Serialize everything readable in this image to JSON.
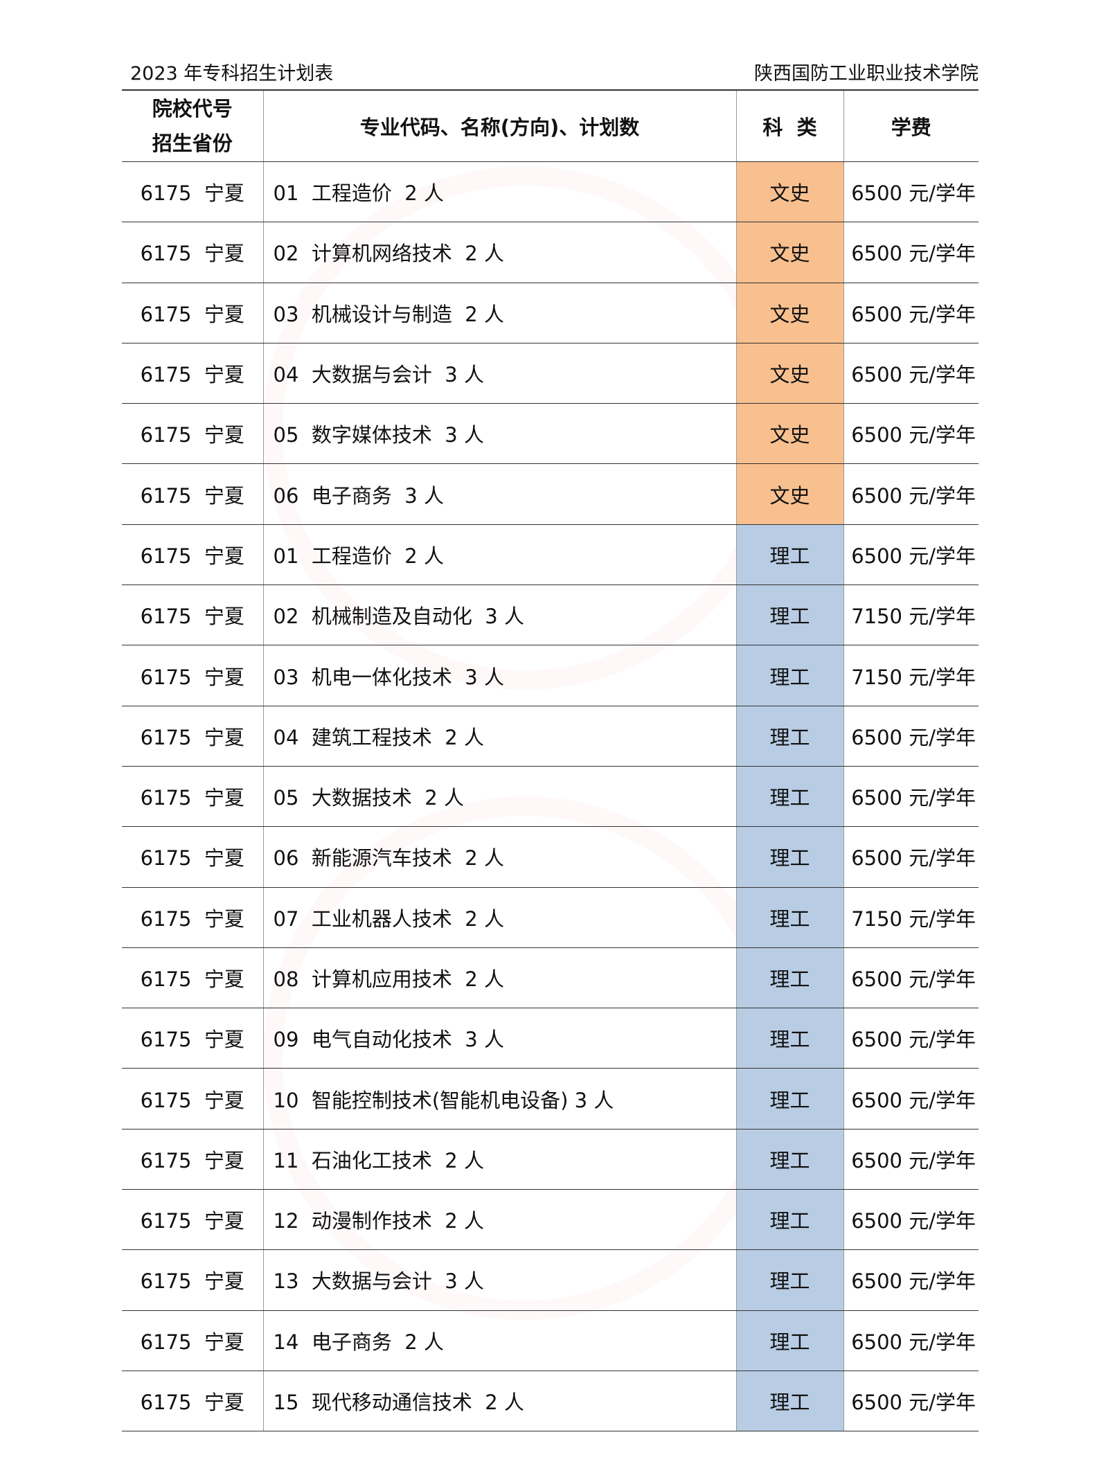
{
  "header": {
    "left": "2023 年专科招生计划表",
    "right": "陕西国防工业职业技术学院"
  },
  "columns": {
    "school_code": "院校代号",
    "province": "招生省份",
    "major": "专业代码、名称(方向)、计划数",
    "category": "科  类",
    "tuition": "学费"
  },
  "colors": {
    "文史": "#f8c08f",
    "理工": "#b8cce4"
  },
  "rows": [
    {
      "code_prov": "6175  宁夏",
      "major": "01  工程造价  2 人",
      "category": "文史",
      "tuition": "6500 元/学年"
    },
    {
      "code_prov": "6175  宁夏",
      "major": "02  计算机网络技术  2 人",
      "category": "文史",
      "tuition": "6500 元/学年"
    },
    {
      "code_prov": "6175  宁夏",
      "major": "03  机械设计与制造  2 人",
      "category": "文史",
      "tuition": "6500 元/学年"
    },
    {
      "code_prov": "6175  宁夏",
      "major": "04  大数据与会计  3 人",
      "category": "文史",
      "tuition": "6500 元/学年"
    },
    {
      "code_prov": "6175  宁夏",
      "major": "05  数字媒体技术  3 人",
      "category": "文史",
      "tuition": "6500 元/学年"
    },
    {
      "code_prov": "6175  宁夏",
      "major": "06  电子商务  3 人",
      "category": "文史",
      "tuition": "6500 元/学年"
    },
    {
      "code_prov": "6175  宁夏",
      "major": "01  工程造价  2 人",
      "category": "理工",
      "tuition": "6500 元/学年"
    },
    {
      "code_prov": "6175  宁夏",
      "major": "02  机械制造及自动化  3 人",
      "category": "理工",
      "tuition": "7150 元/学年"
    },
    {
      "code_prov": "6175  宁夏",
      "major": "03  机电一体化技术  3 人",
      "category": "理工",
      "tuition": "7150 元/学年"
    },
    {
      "code_prov": "6175  宁夏",
      "major": "04  建筑工程技术  2 人",
      "category": "理工",
      "tuition": "6500 元/学年"
    },
    {
      "code_prov": "6175  宁夏",
      "major": "05  大数据技术  2 人",
      "category": "理工",
      "tuition": "6500 元/学年"
    },
    {
      "code_prov": "6175  宁夏",
      "major": "06  新能源汽车技术  2 人",
      "category": "理工",
      "tuition": "6500 元/学年"
    },
    {
      "code_prov": "6175  宁夏",
      "major": "07  工业机器人技术  2 人",
      "category": "理工",
      "tuition": "7150 元/学年"
    },
    {
      "code_prov": "6175  宁夏",
      "major": "08  计算机应用技术  2 人",
      "category": "理工",
      "tuition": "6500 元/学年"
    },
    {
      "code_prov": "6175  宁夏",
      "major": "09  电气自动化技术  3 人",
      "category": "理工",
      "tuition": "6500 元/学年"
    },
    {
      "code_prov": "6175  宁夏",
      "major": "10  智能控制技术(智能机电设备) 3 人",
      "category": "理工",
      "tuition": "6500 元/学年"
    },
    {
      "code_prov": "6175  宁夏",
      "major": "11  石油化工技术  2 人",
      "category": "理工",
      "tuition": "6500 元/学年"
    },
    {
      "code_prov": "6175  宁夏",
      "major": "12  动漫制作技术  2 人",
      "category": "理工",
      "tuition": "6500 元/学年"
    },
    {
      "code_prov": "6175  宁夏",
      "major": "13  大数据与会计  3 人",
      "category": "理工",
      "tuition": "6500 元/学年"
    },
    {
      "code_prov": "6175  宁夏",
      "major": "14  电子商务  2 人",
      "category": "理工",
      "tuition": "6500 元/学年"
    },
    {
      "code_prov": "6175  宁夏",
      "major": "15  现代移动通信技术  2 人",
      "category": "理工",
      "tuition": "6500 元/学年"
    }
  ]
}
